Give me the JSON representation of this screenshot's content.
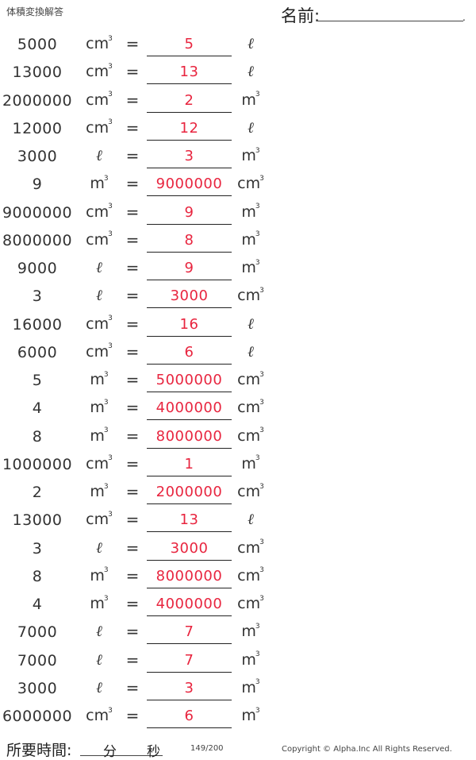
{
  "header": {
    "title": "体積変換解答",
    "name_label": "名前:"
  },
  "rows": [
    {
      "value": "5000",
      "from": "cm3",
      "answer": "5",
      "to": "l"
    },
    {
      "value": "13000",
      "from": "cm3",
      "answer": "13",
      "to": "l"
    },
    {
      "value": "2000000",
      "from": "cm3",
      "answer": "2",
      "to": "m3"
    },
    {
      "value": "12000",
      "from": "cm3",
      "answer": "12",
      "to": "l"
    },
    {
      "value": "3000",
      "from": "l",
      "answer": "3",
      "to": "m3"
    },
    {
      "value": "9",
      "from": "m3",
      "answer": "9000000",
      "to": "cm3"
    },
    {
      "value": "9000000",
      "from": "cm3",
      "answer": "9",
      "to": "m3"
    },
    {
      "value": "8000000",
      "from": "cm3",
      "answer": "8",
      "to": "m3"
    },
    {
      "value": "9000",
      "from": "l",
      "answer": "9",
      "to": "m3"
    },
    {
      "value": "3",
      "from": "l",
      "answer": "3000",
      "to": "cm3"
    },
    {
      "value": "16000",
      "from": "cm3",
      "answer": "16",
      "to": "l"
    },
    {
      "value": "6000",
      "from": "cm3",
      "answer": "6",
      "to": "l"
    },
    {
      "value": "5",
      "from": "m3",
      "answer": "5000000",
      "to": "cm3"
    },
    {
      "value": "4",
      "from": "m3",
      "answer": "4000000",
      "to": "cm3"
    },
    {
      "value": "8",
      "from": "m3",
      "answer": "8000000",
      "to": "cm3"
    },
    {
      "value": "1000000",
      "from": "cm3",
      "answer": "1",
      "to": "m3"
    },
    {
      "value": "2",
      "from": "m3",
      "answer": "2000000",
      "to": "cm3"
    },
    {
      "value": "13000",
      "from": "cm3",
      "answer": "13",
      "to": "l"
    },
    {
      "value": "3",
      "from": "l",
      "answer": "3000",
      "to": "cm3"
    },
    {
      "value": "8",
      "from": "m3",
      "answer": "8000000",
      "to": "cm3"
    },
    {
      "value": "4",
      "from": "m3",
      "answer": "4000000",
      "to": "cm3"
    },
    {
      "value": "7000",
      "from": "l",
      "answer": "7",
      "to": "m3"
    },
    {
      "value": "7000",
      "from": "l",
      "answer": "7",
      "to": "m3"
    },
    {
      "value": "3000",
      "from": "l",
      "answer": "3",
      "to": "m3"
    },
    {
      "value": "6000000",
      "from": "cm3",
      "answer": "6",
      "to": "m3"
    }
  ],
  "symbols": {
    "equals": "=",
    "liter": "ℓ",
    "cm": "cm",
    "m": "m",
    "cube": "3"
  },
  "footer": {
    "time_label": "所要時間:",
    "minutes_label": "分",
    "seconds_label": "秒",
    "page": "149/200",
    "copyright": "Copyright © Alpha.Inc All Rights Reserved."
  },
  "colors": {
    "answer": "#e8253f",
    "text": "#333333"
  }
}
